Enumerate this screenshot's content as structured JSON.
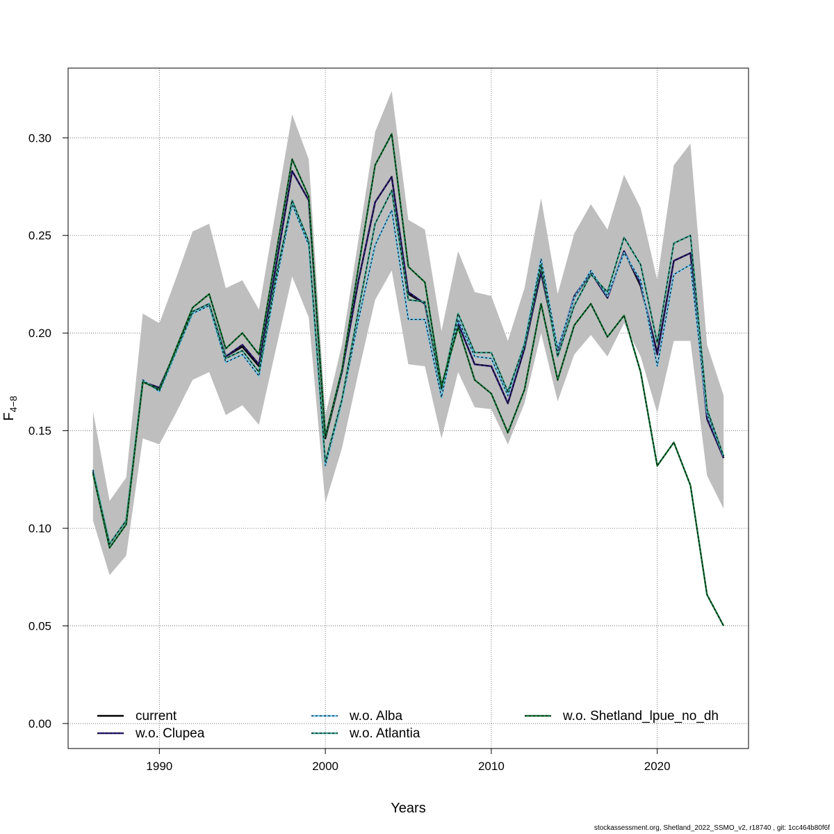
{
  "chart_data": {
    "type": "line",
    "xlabel": "Years",
    "ylabel": "F",
    "ylabel_sub": "4−8",
    "xlim": [
      1984.5,
      2025.5
    ],
    "ylim": [
      -0.0128,
      0.3357
    ],
    "xticks": [
      1990,
      2000,
      2010,
      2020
    ],
    "yticks": [
      0.0,
      0.05,
      0.1,
      0.15,
      0.2,
      0.25,
      0.3
    ],
    "ytick_labels": [
      "0.00",
      "0.05",
      "0.10",
      "0.15",
      "0.20",
      "0.25",
      "0.30"
    ],
    "grid": true,
    "legend_placement": "bottom",
    "x": [
      1986,
      1987,
      1988,
      1989,
      1990,
      1991,
      1992,
      1993,
      1994,
      1995,
      1996,
      1997,
      1998,
      1999,
      2000,
      2001,
      2002,
      2003,
      2004,
      2005,
      2006,
      2007,
      2008,
      2009,
      2010,
      2011,
      2012,
      2013,
      2014,
      2015,
      2016,
      2017,
      2018,
      2019,
      2020,
      2021,
      2022,
      2023,
      2024
    ],
    "band": {
      "color": "#bebebe",
      "lower": [
        0.104,
        0.076,
        0.086,
        0.146,
        0.143,
        0.159,
        0.176,
        0.18,
        0.158,
        0.163,
        0.153,
        0.191,
        0.229,
        0.208,
        0.113,
        0.141,
        0.18,
        0.217,
        0.232,
        0.184,
        0.183,
        0.146,
        0.18,
        0.162,
        0.161,
        0.143,
        0.164,
        0.2,
        0.165,
        0.189,
        0.199,
        0.188,
        0.205,
        0.188,
        0.159,
        0.196,
        0.196,
        0.127,
        0.11
      ],
      "upper": [
        0.16,
        0.114,
        0.126,
        0.21,
        0.205,
        0.228,
        0.252,
        0.256,
        0.223,
        0.227,
        0.212,
        0.262,
        0.312,
        0.289,
        0.158,
        0.194,
        0.248,
        0.303,
        0.324,
        0.258,
        0.253,
        0.201,
        0.242,
        0.221,
        0.219,
        0.196,
        0.223,
        0.269,
        0.22,
        0.251,
        0.266,
        0.253,
        0.281,
        0.264,
        0.227,
        0.286,
        0.297,
        0.194,
        0.168
      ]
    },
    "series": [
      {
        "name": "current",
        "color": "#000000",
        "dash": "none",
        "values": [
          0.129,
          0.092,
          0.104,
          0.175,
          0.172,
          0.191,
          0.211,
          0.215,
          0.188,
          0.193,
          0.183,
          0.233,
          0.283,
          0.268,
          0.146,
          0.18,
          0.227,
          0.267,
          0.28,
          0.22,
          0.215,
          0.171,
          0.205,
          0.184,
          0.183,
          0.164,
          0.192,
          0.231,
          0.191,
          0.218,
          0.231,
          0.218,
          0.242,
          0.224,
          0.19,
          0.237,
          0.241,
          0.156,
          0.136
        ]
      },
      {
        "name": "w.o. Clupea",
        "color": "#2f1e7a",
        "dash": "4,3",
        "values": [
          0.129,
          0.092,
          0.104,
          0.175,
          0.172,
          0.191,
          0.211,
          0.215,
          0.188,
          0.194,
          0.184,
          0.233,
          0.283,
          0.268,
          0.147,
          0.18,
          0.227,
          0.267,
          0.28,
          0.221,
          0.215,
          0.171,
          0.205,
          0.184,
          0.183,
          0.164,
          0.192,
          0.232,
          0.191,
          0.219,
          0.231,
          0.218,
          0.242,
          0.225,
          0.189,
          0.237,
          0.241,
          0.156,
          0.136
        ]
      },
      {
        "name": "w.o. Alba",
        "color": "#6bc5ee",
        "dash": "3,3",
        "values": [
          0.13,
          0.092,
          0.104,
          0.176,
          0.17,
          0.19,
          0.21,
          0.214,
          0.185,
          0.189,
          0.178,
          0.225,
          0.266,
          0.245,
          0.132,
          0.165,
          0.207,
          0.245,
          0.263,
          0.207,
          0.207,
          0.167,
          0.207,
          0.188,
          0.187,
          0.168,
          0.195,
          0.238,
          0.192,
          0.218,
          0.232,
          0.219,
          0.241,
          0.227,
          0.183,
          0.23,
          0.235,
          0.159,
          0.137
        ]
      },
      {
        "name": "w.o. Atlantia",
        "color": "#3aa58e",
        "dash": "4,3",
        "values": [
          0.129,
          0.092,
          0.104,
          0.175,
          0.171,
          0.191,
          0.211,
          0.215,
          0.187,
          0.191,
          0.18,
          0.228,
          0.268,
          0.247,
          0.134,
          0.166,
          0.212,
          0.256,
          0.273,
          0.217,
          0.216,
          0.171,
          0.21,
          0.19,
          0.19,
          0.17,
          0.194,
          0.235,
          0.188,
          0.214,
          0.23,
          0.221,
          0.249,
          0.235,
          0.195,
          0.246,
          0.25,
          0.161,
          0.137
        ]
      },
      {
        "name": "w.o. Shetland_lpue_no_dh",
        "color": "#137638",
        "dash": "3,3",
        "values": [
          0.128,
          0.09,
          0.102,
          0.175,
          0.171,
          0.192,
          0.213,
          0.22,
          0.192,
          0.2,
          0.189,
          0.239,
          0.289,
          0.27,
          0.147,
          0.181,
          0.234,
          0.286,
          0.302,
          0.234,
          0.226,
          0.173,
          0.203,
          0.176,
          0.169,
          0.149,
          0.171,
          0.215,
          0.176,
          0.204,
          0.215,
          0.198,
          0.209,
          0.18,
          0.132,
          0.144,
          0.122,
          0.066,
          0.05
        ]
      }
    ],
    "legend": [
      {
        "label": "current",
        "color": "#000000",
        "dot": false
      },
      {
        "label": "w.o. Clupea",
        "color": "#2f1e7a",
        "dot": true
      },
      {
        "label": "w.o. Alba",
        "color": "#6bc5ee",
        "dot": true
      },
      {
        "label": "w.o. Atlantia",
        "color": "#3aa58e",
        "dot": true
      },
      {
        "label": "w.o. Shetland_lpue_no_dh",
        "color": "#137638",
        "dot": true
      }
    ]
  },
  "footer": "stockassessment.org, Shetland_2022_SSMO_v2, r18740 , git: 1cc464b80f6f"
}
